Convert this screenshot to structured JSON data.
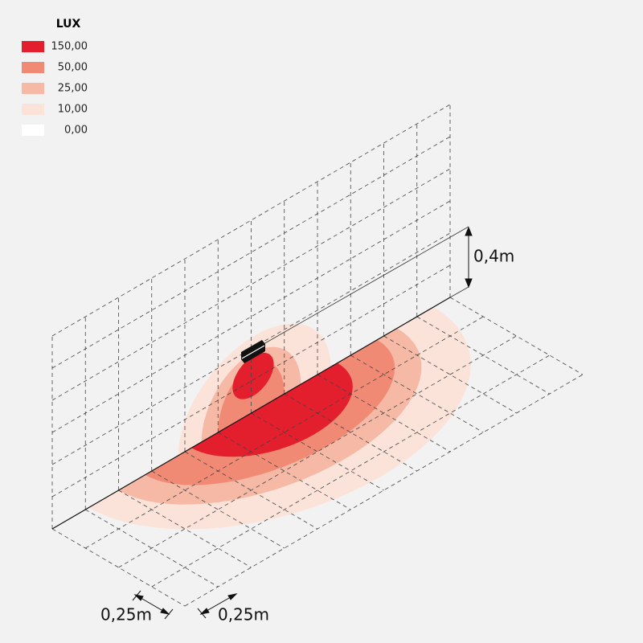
{
  "legend": {
    "title": "LUX",
    "items": [
      {
        "label": "150,00",
        "color": "#e31e2d"
      },
      {
        "label": "50,00",
        "color": "#f08a74"
      },
      {
        "label": "25,00",
        "color": "#f6b9a6"
      },
      {
        "label": "10,00",
        "color": "#fbe3da"
      },
      {
        "label": "0,00",
        "color": "#ffffff"
      }
    ]
  },
  "dimensions": {
    "height": "0,4m",
    "depth": "0,25m",
    "width": "0,25m"
  }
}
